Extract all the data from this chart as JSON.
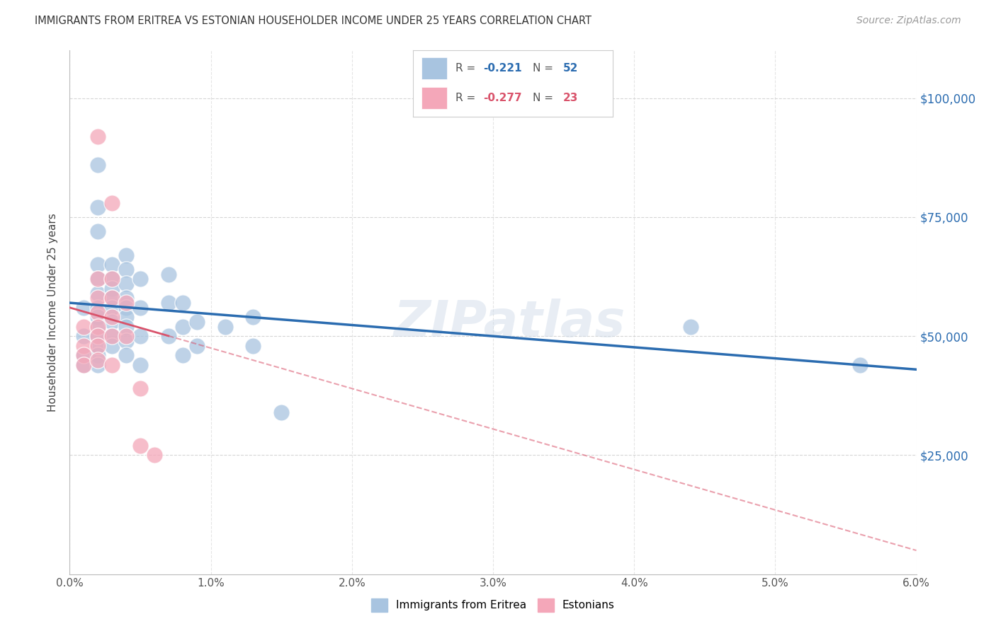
{
  "title": "IMMIGRANTS FROM ERITREA VS ESTONIAN HOUSEHOLDER INCOME UNDER 25 YEARS CORRELATION CHART",
  "source": "Source: ZipAtlas.com",
  "ylabel": "Householder Income Under 25 years",
  "xlim": [
    0.0,
    0.06
  ],
  "ylim": [
    0,
    110000
  ],
  "ytick_labels": [
    "$25,000",
    "$50,000",
    "$75,000",
    "$100,000"
  ],
  "ytick_values": [
    25000,
    50000,
    75000,
    100000
  ],
  "xtick_labels": [
    "0.0%",
    "1.0%",
    "2.0%",
    "3.0%",
    "4.0%",
    "5.0%",
    "6.0%"
  ],
  "xtick_values": [
    0.0,
    0.01,
    0.02,
    0.03,
    0.04,
    0.05,
    0.06
  ],
  "legend_blue_r": "-0.221",
  "legend_blue_n": "52",
  "legend_pink_r": "-0.277",
  "legend_pink_n": "23",
  "blue_color": "#a8c4e0",
  "pink_color": "#f4a7b9",
  "blue_line_color": "#2b6cb0",
  "pink_line_color": "#d9536b",
  "blue_scatter": [
    [
      0.001,
      46000
    ],
    [
      0.001,
      44000
    ],
    [
      0.001,
      50000
    ],
    [
      0.001,
      56000
    ],
    [
      0.002,
      86000
    ],
    [
      0.002,
      77000
    ],
    [
      0.002,
      72000
    ],
    [
      0.002,
      65000
    ],
    [
      0.002,
      62000
    ],
    [
      0.002,
      59000
    ],
    [
      0.002,
      56000
    ],
    [
      0.002,
      54000
    ],
    [
      0.002,
      52000
    ],
    [
      0.002,
      50000
    ],
    [
      0.002,
      48000
    ],
    [
      0.002,
      46000
    ],
    [
      0.002,
      44000
    ],
    [
      0.003,
      65000
    ],
    [
      0.003,
      62000
    ],
    [
      0.003,
      60000
    ],
    [
      0.003,
      58000
    ],
    [
      0.003,
      56000
    ],
    [
      0.003,
      53000
    ],
    [
      0.003,
      50000
    ],
    [
      0.003,
      48000
    ],
    [
      0.004,
      67000
    ],
    [
      0.004,
      64000
    ],
    [
      0.004,
      61000
    ],
    [
      0.004,
      58000
    ],
    [
      0.004,
      56000
    ],
    [
      0.004,
      54000
    ],
    [
      0.004,
      52000
    ],
    [
      0.004,
      49000
    ],
    [
      0.004,
      46000
    ],
    [
      0.005,
      62000
    ],
    [
      0.005,
      56000
    ],
    [
      0.005,
      50000
    ],
    [
      0.005,
      44000
    ],
    [
      0.007,
      63000
    ],
    [
      0.007,
      57000
    ],
    [
      0.007,
      50000
    ],
    [
      0.008,
      57000
    ],
    [
      0.008,
      52000
    ],
    [
      0.008,
      46000
    ],
    [
      0.009,
      53000
    ],
    [
      0.009,
      48000
    ],
    [
      0.011,
      52000
    ],
    [
      0.013,
      54000
    ],
    [
      0.013,
      48000
    ],
    [
      0.015,
      34000
    ],
    [
      0.044,
      52000
    ],
    [
      0.056,
      44000
    ]
  ],
  "pink_scatter": [
    [
      0.001,
      48000
    ],
    [
      0.001,
      46000
    ],
    [
      0.001,
      44000
    ],
    [
      0.001,
      52000
    ],
    [
      0.002,
      92000
    ],
    [
      0.002,
      62000
    ],
    [
      0.002,
      58000
    ],
    [
      0.002,
      55000
    ],
    [
      0.002,
      52000
    ],
    [
      0.002,
      50000
    ],
    [
      0.002,
      48000
    ],
    [
      0.002,
      45000
    ],
    [
      0.003,
      78000
    ],
    [
      0.003,
      62000
    ],
    [
      0.003,
      58000
    ],
    [
      0.003,
      54000
    ],
    [
      0.003,
      50000
    ],
    [
      0.003,
      44000
    ],
    [
      0.004,
      57000
    ],
    [
      0.004,
      50000
    ],
    [
      0.005,
      39000
    ],
    [
      0.005,
      27000
    ],
    [
      0.006,
      25000
    ]
  ],
  "watermark": "ZIPatlas",
  "background_color": "#ffffff",
  "grid_color": "#cccccc"
}
